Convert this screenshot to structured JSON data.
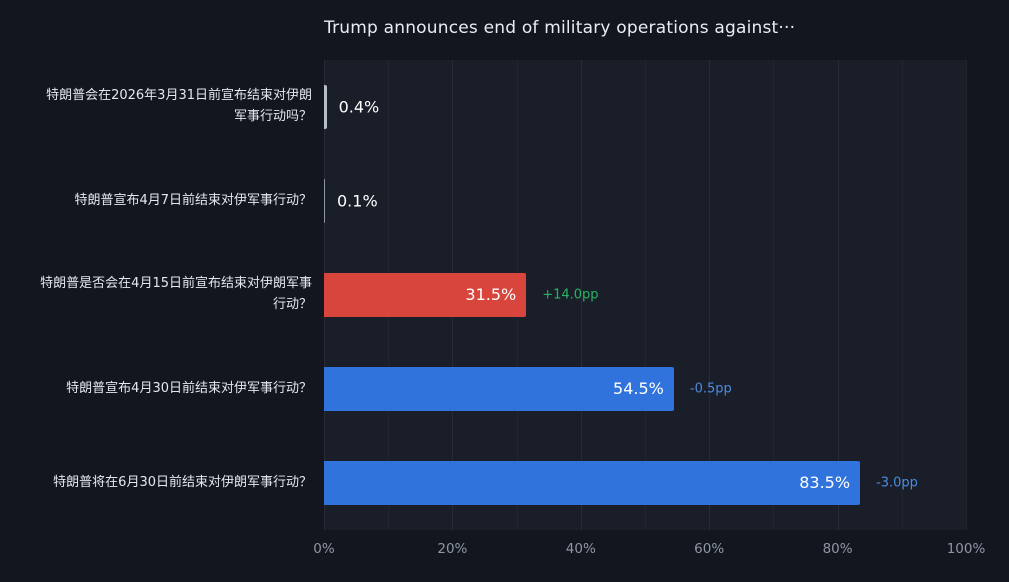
{
  "page": {
    "background": "#13161e",
    "plot_background": "#1a1e29"
  },
  "chart_data": {
    "type": "bar",
    "orientation": "horizontal",
    "title": "Trump announces end of military operations against···",
    "xlabel": "",
    "ylabel": "",
    "xlim": [
      0,
      100
    ],
    "x_ticks": [
      "0%",
      "20%",
      "40%",
      "60%",
      "80%",
      "100%"
    ],
    "grid": "vertical",
    "legend": "none",
    "bars": [
      {
        "category": "特朗普会在2026年3月31日前宣布结束对伊朗军事行动吗？",
        "value": 0.4,
        "value_label": "0.4%",
        "color": "#b4bdc8",
        "annotation": "",
        "annotation_color": ""
      },
      {
        "category": "特朗普宣布4月7日前结束对伊军事行动？",
        "value": 0.1,
        "value_label": "0.1%",
        "color": "#8d96a3",
        "annotation": "",
        "annotation_color": ""
      },
      {
        "category": "特朗普是否会在4月15日前宣布结束对伊朗军事行动？",
        "value": 31.5,
        "value_label": "31.5%",
        "color": "#d8453c",
        "annotation": "+14.0pp",
        "annotation_color": "#27b564"
      },
      {
        "category": "特朗普宣布4月30日前结束对伊军事行动？",
        "value": 54.5,
        "value_label": "54.5%",
        "color": "#3173dc",
        "annotation": "-0.5pp",
        "annotation_color": "#4d8be0"
      },
      {
        "category": "特朗普将在6月30日前结束对伊朗军事行动？",
        "value": 83.5,
        "value_label": "83.5%",
        "color": "#3173dc",
        "annotation": "-3.0pp",
        "annotation_color": "#4d8be0"
      }
    ]
  }
}
